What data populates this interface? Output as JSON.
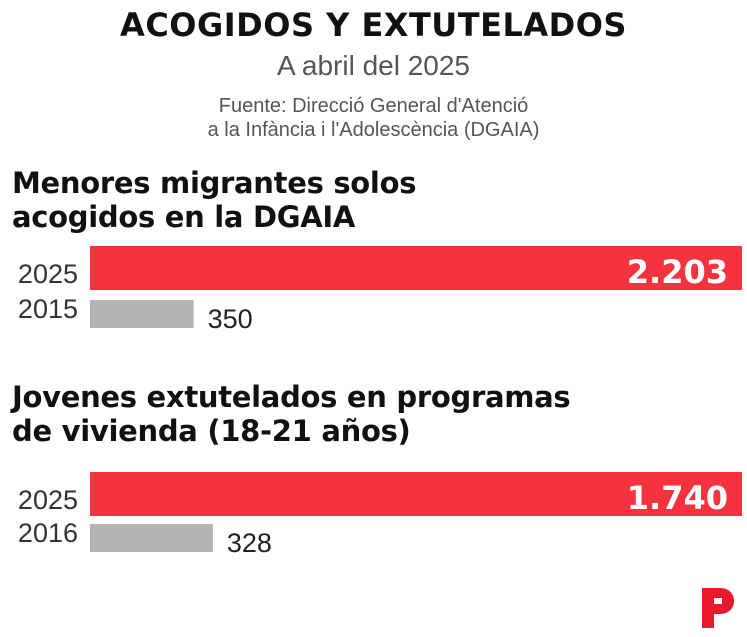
{
  "header": {
    "title": "ACOGIDOS Y EXTUTELADOS",
    "subtitle": "A abril del 2025",
    "source_line1": "Fuente: Direcció General d'Atenció",
    "source_line2": "a la Infància i l'Adolescència (DGAIA)"
  },
  "colors": {
    "highlight": "#f5333f",
    "muted": "#b3b3b3",
    "text": "#111111",
    "logo": "#e8192c"
  },
  "logo_icon": "publisher-p-logo",
  "chart_data": [
    {
      "type": "bar",
      "orientation": "horizontal",
      "title_line1": "Menores migrantes solos",
      "title_line2": "acogidos en la DGAIA",
      "categories": [
        "2025",
        "2015"
      ],
      "values": [
        2203,
        350
      ],
      "value_labels": [
        "2.203",
        "350"
      ],
      "xlim": [
        0,
        2203
      ]
    },
    {
      "type": "bar",
      "orientation": "horizontal",
      "title_line1": "Jovenes extutelados en programas",
      "title_line2": "de vivienda (18-21 años)",
      "categories": [
        "2025",
        "2016"
      ],
      "values": [
        1740,
        328
      ],
      "value_labels": [
        "1.740",
        "328"
      ],
      "xlim": [
        0,
        1740
      ]
    }
  ]
}
